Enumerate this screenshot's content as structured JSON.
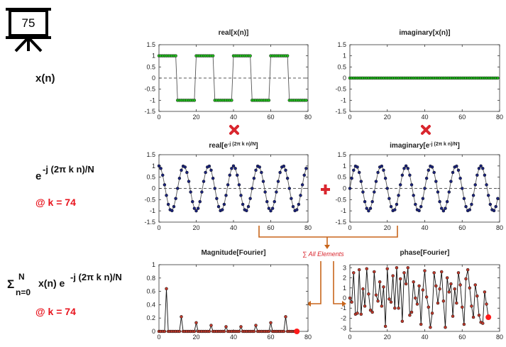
{
  "labels": {
    "icon": "75",
    "signal": "x(n)",
    "exp_base": "e",
    "exp_sup": "-j (2π k n)/N",
    "k_note": "@ k = 74",
    "sum_symbol": "Σ",
    "sum_upper": "N",
    "sum_lower": "n=0",
    "sum_body": "x(n) e",
    "sum_sup": "-j (2π k n)/N",
    "sum_k_note": "@ k = 74",
    "all_elements": "∑ All Elements"
  },
  "chart_data": [
    {
      "type": "line",
      "title": "real[x(n)]",
      "xlim": [
        0,
        80
      ],
      "xticks": [
        0,
        20,
        40,
        60,
        80
      ],
      "ylim": [
        -1.5,
        1.5
      ],
      "yticks": [
        -1.5,
        -1,
        -0.5,
        0,
        0.5,
        1,
        1.5
      ],
      "zero_line": true,
      "x": [
        0,
        1,
        2,
        3,
        4,
        5,
        6,
        7,
        8,
        9,
        10,
        11,
        12,
        13,
        14,
        15,
        16,
        17,
        18,
        19,
        20,
        21,
        22,
        23,
        24,
        25,
        26,
        27,
        28,
        29,
        30,
        31,
        32,
        33,
        34,
        35,
        36,
        37,
        38,
        39,
        40,
        41,
        42,
        43,
        44,
        45,
        46,
        47,
        48,
        49,
        50,
        51,
        52,
        53,
        54,
        55,
        56,
        57,
        58,
        59,
        60,
        61,
        62,
        63,
        64,
        65,
        66,
        67,
        68,
        69,
        70,
        71,
        72,
        73,
        74,
        75,
        76,
        77,
        78,
        79
      ],
      "series": [
        {
          "color": "#555555",
          "marker_color": "#22c01e",
          "values": [
            1,
            1,
            1,
            1,
            1,
            1,
            1,
            1,
            1,
            1,
            -1,
            -1,
            -1,
            -1,
            -1,
            -1,
            -1,
            -1,
            -1,
            -1,
            1,
            1,
            1,
            1,
            1,
            1,
            1,
            1,
            1,
            1,
            -1,
            -1,
            -1,
            -1,
            -1,
            -1,
            -1,
            -1,
            -1,
            -1,
            1,
            1,
            1,
            1,
            1,
            1,
            1,
            1,
            1,
            1,
            -1,
            -1,
            -1,
            -1,
            -1,
            -1,
            -1,
            -1,
            -1,
            -1,
            1,
            1,
            1,
            1,
            1,
            1,
            1,
            1,
            1,
            1,
            -1,
            -1,
            -1,
            -1,
            -1,
            -1,
            -1,
            -1,
            -1,
            -1
          ]
        }
      ]
    },
    {
      "type": "line",
      "title": "imaginary[x(n)]",
      "xlim": [
        0,
        80
      ],
      "xticks": [
        0,
        20,
        40,
        60,
        80
      ],
      "ylim": [
        -1.5,
        1.5
      ],
      "yticks": [
        -1.5,
        -1,
        -0.5,
        0,
        0.5,
        1,
        1.5
      ],
      "zero_line": true,
      "x": [
        0,
        1,
        2,
        3,
        4,
        5,
        6,
        7,
        8,
        9,
        10,
        11,
        12,
        13,
        14,
        15,
        16,
        17,
        18,
        19,
        20,
        21,
        22,
        23,
        24,
        25,
        26,
        27,
        28,
        29,
        30,
        31,
        32,
        33,
        34,
        35,
        36,
        37,
        38,
        39,
        40,
        41,
        42,
        43,
        44,
        45,
        46,
        47,
        48,
        49,
        50,
        51,
        52,
        53,
        54,
        55,
        56,
        57,
        58,
        59,
        60,
        61,
        62,
        63,
        64,
        65,
        66,
        67,
        68,
        69,
        70,
        71,
        72,
        73,
        74,
        75,
        76,
        77,
        78,
        79
      ],
      "series": [
        {
          "color": "#555555",
          "marker_color": "#22c01e",
          "values": [
            0,
            0,
            0,
            0,
            0,
            0,
            0,
            0,
            0,
            0,
            0,
            0,
            0,
            0,
            0,
            0,
            0,
            0,
            0,
            0,
            0,
            0,
            0,
            0,
            0,
            0,
            0,
            0,
            0,
            0,
            0,
            0,
            0,
            0,
            0,
            0,
            0,
            0,
            0,
            0,
            0,
            0,
            0,
            0,
            0,
            0,
            0,
            0,
            0,
            0,
            0,
            0,
            0,
            0,
            0,
            0,
            0,
            0,
            0,
            0,
            0,
            0,
            0,
            0,
            0,
            0,
            0,
            0,
            0,
            0,
            0,
            0,
            0,
            0,
            0,
            0,
            0,
            0,
            0,
            0
          ]
        }
      ]
    },
    {
      "type": "line",
      "title": "real[e",
      "title_sup": "-j (2π k n)/N",
      "title_end": "]",
      "xlim": [
        0,
        80
      ],
      "xticks": [
        0,
        20,
        40,
        60,
        80
      ],
      "ylim": [
        -1.5,
        1.5
      ],
      "yticks": [
        -1.5,
        -1,
        -0.5,
        0,
        0.5,
        1,
        1.5
      ],
      "zero_line": true,
      "x": [
        0,
        1,
        2,
        3,
        4,
        5,
        6,
        7,
        8,
        9,
        10,
        11,
        12,
        13,
        14,
        15,
        16,
        17,
        18,
        19,
        20,
        21,
        22,
        23,
        24,
        25,
        26,
        27,
        28,
        29,
        30,
        31,
        32,
        33,
        34,
        35,
        36,
        37,
        38,
        39,
        40,
        41,
        42,
        43,
        44,
        45,
        46,
        47,
        48,
        49,
        50,
        51,
        52,
        53,
        54,
        55,
        56,
        57,
        58,
        59,
        60,
        61,
        62,
        63,
        64,
        65,
        66,
        67,
        68,
        69,
        70,
        71,
        72,
        73,
        74,
        75,
        76,
        77,
        78,
        79
      ],
      "series": [
        {
          "color": "#555555",
          "marker_color": "#1a237e",
          "values": [
            1,
            0.89,
            0.59,
            0.16,
            -0.31,
            -0.71,
            -0.95,
            -0.99,
            -0.81,
            -0.45,
            0,
            0.45,
            0.81,
            0.99,
            0.95,
            0.71,
            0.31,
            -0.16,
            -0.59,
            -0.89,
            -1,
            -0.89,
            -0.59,
            -0.16,
            0.31,
            0.71,
            0.95,
            0.99,
            0.81,
            0.45,
            0,
            -0.45,
            -0.81,
            -0.99,
            -0.95,
            -0.71,
            -0.31,
            0.16,
            0.59,
            0.89,
            1,
            0.89,
            0.59,
            0.16,
            -0.31,
            -0.71,
            -0.95,
            -0.99,
            -0.81,
            -0.45,
            0,
            0.45,
            0.81,
            0.99,
            0.95,
            0.71,
            0.31,
            -0.16,
            -0.59,
            -0.89,
            -1,
            -0.89,
            -0.59,
            -0.16,
            0.31,
            0.71,
            0.95,
            0.99,
            0.81,
            0.45,
            0,
            -0.45,
            -0.81,
            -0.99,
            -0.95,
            -0.71,
            -0.31,
            0.16,
            0.59,
            0.89
          ]
        }
      ]
    },
    {
      "type": "line",
      "title": "imaginary[e",
      "title_sup": "-j (2π k n)/N",
      "title_end": "]",
      "xlim": [
        0,
        80
      ],
      "xticks": [
        0,
        20,
        40,
        60,
        80
      ],
      "ylim": [
        -1.5,
        1.5
      ],
      "yticks": [
        -1.5,
        -1,
        -0.5,
        0,
        0.5,
        1,
        1.5
      ],
      "zero_line": true,
      "x": [
        0,
        1,
        2,
        3,
        4,
        5,
        6,
        7,
        8,
        9,
        10,
        11,
        12,
        13,
        14,
        15,
        16,
        17,
        18,
        19,
        20,
        21,
        22,
        23,
        24,
        25,
        26,
        27,
        28,
        29,
        30,
        31,
        32,
        33,
        34,
        35,
        36,
        37,
        38,
        39,
        40,
        41,
        42,
        43,
        44,
        45,
        46,
        47,
        48,
        49,
        50,
        51,
        52,
        53,
        54,
        55,
        56,
        57,
        58,
        59,
        60,
        61,
        62,
        63,
        64,
        65,
        66,
        67,
        68,
        69,
        70,
        71,
        72,
        73,
        74,
        75,
        76,
        77,
        78,
        79
      ],
      "series": [
        {
          "color": "#555555",
          "marker_color": "#1a237e",
          "values": [
            0,
            0.45,
            0.81,
            0.99,
            0.95,
            0.71,
            0.31,
            -0.16,
            -0.59,
            -0.89,
            -1,
            -0.89,
            -0.59,
            -0.16,
            0.31,
            0.71,
            0.95,
            0.99,
            0.81,
            0.45,
            0,
            -0.45,
            -0.81,
            -0.99,
            -0.95,
            -0.71,
            -0.31,
            0.16,
            0.59,
            0.89,
            1,
            0.89,
            0.59,
            0.16,
            -0.31,
            -0.71,
            -0.95,
            -0.99,
            -0.81,
            -0.45,
            0,
            0.45,
            0.81,
            0.99,
            0.95,
            0.71,
            0.31,
            -0.16,
            -0.59,
            -0.89,
            -1,
            -0.89,
            -0.59,
            -0.16,
            0.31,
            0.71,
            0.95,
            0.99,
            0.81,
            0.45,
            0,
            -0.45,
            -0.81,
            -0.99,
            -0.95,
            -0.71,
            -0.31,
            0.16,
            0.59,
            0.89,
            1,
            0.89,
            0.59,
            0.16,
            -0.31,
            -0.71,
            -0.95,
            -0.99,
            -0.81,
            -0.45
          ]
        }
      ]
    },
    {
      "type": "line",
      "title": "Magnitude[Fourier]",
      "xlim": [
        0,
        80
      ],
      "xticks": [
        0,
        20,
        40,
        60,
        80
      ],
      "ylim": [
        0,
        1
      ],
      "yticks": [
        0,
        0.2,
        0.4,
        0.6,
        0.8,
        1
      ],
      "highlight_color": "#ff1a1a",
      "x": [
        0,
        1,
        2,
        3,
        4,
        5,
        6,
        7,
        8,
        9,
        10,
        11,
        12,
        13,
        14,
        15,
        16,
        17,
        18,
        19,
        20,
        21,
        22,
        23,
        24,
        25,
        26,
        27,
        28,
        29,
        30,
        31,
        32,
        33,
        34,
        35,
        36,
        37,
        38,
        39,
        40,
        41,
        42,
        43,
        44,
        45,
        46,
        47,
        48,
        49,
        50,
        51,
        52,
        53,
        54,
        55,
        56,
        57,
        58,
        59,
        60,
        61,
        62,
        63,
        64,
        65,
        66,
        67,
        68,
        69,
        70,
        71,
        72,
        73,
        74
      ],
      "series": [
        {
          "color": "#111111",
          "marker_color": "#c0392b",
          "values": [
            0,
            0,
            0,
            0,
            0.64,
            0,
            0,
            0,
            0,
            0,
            0,
            0,
            0.22,
            0,
            0,
            0,
            0,
            0,
            0,
            0,
            0.13,
            0,
            0,
            0,
            0,
            0,
            0,
            0,
            0.09,
            0,
            0,
            0,
            0,
            0,
            0,
            0,
            0.07,
            0,
            0,
            0,
            0,
            0,
            0,
            0,
            0.07,
            0,
            0,
            0,
            0,
            0,
            0,
            0,
            0.09,
            0,
            0,
            0,
            0,
            0,
            0,
            0,
            0.13,
            0,
            0,
            0,
            0,
            0,
            0,
            0,
            0.22,
            0,
            0,
            0,
            0,
            0,
            0
          ]
        }
      ]
    },
    {
      "type": "line",
      "title": "phase[Fourier]",
      "xlim": [
        0,
        80
      ],
      "xticks": [
        0,
        20,
        40,
        60,
        80
      ],
      "ylim": [
        -3.3,
        3.3
      ],
      "yticks": [
        -3,
        -2,
        -1,
        0,
        1,
        2,
        3
      ],
      "highlight_color": "#ff1a1a",
      "x": [
        0,
        1,
        2,
        3,
        4,
        5,
        6,
        7,
        8,
        9,
        10,
        11,
        12,
        13,
        14,
        15,
        16,
        17,
        18,
        19,
        20,
        21,
        22,
        23,
        24,
        25,
        26,
        27,
        28,
        29,
        30,
        31,
        32,
        33,
        34,
        35,
        36,
        37,
        38,
        39,
        40,
        41,
        42,
        43,
        44,
        45,
        46,
        47,
        48,
        49,
        50,
        51,
        52,
        53,
        54,
        55,
        56,
        57,
        58,
        59,
        60,
        61,
        62,
        63,
        64,
        65,
        66,
        67,
        68,
        69,
        70,
        71,
        72,
        73,
        74
      ],
      "series": [
        {
          "color": "#111111",
          "marker_color": "#c0392b",
          "values": [
            0.0,
            -0.4,
            2.5,
            -1.6,
            -1.5,
            2.8,
            -1.6,
            0.9,
            -0.8,
            2.9,
            0.4,
            -1.2,
            -1.4,
            2.6,
            0.3,
            -0.3,
            1.6,
            -0.8,
            1.1,
            -2.8,
            2.9,
            -0.1,
            -0.4,
            2.2,
            -1.0,
            3.0,
            -1.0,
            1.9,
            -2.3,
            2.5,
            1.4,
            3.0,
            -1.7,
            -1.4,
            1.6,
            0.0,
            -0.6,
            1.2,
            -2.6,
            0.8,
            2.7,
            0.1,
            -0.9,
            -2.9,
            -1.5,
            2.5,
            1.2,
            -0.5,
            0.9,
            2.6,
            -0.3,
            -2.9,
            2.0,
            0.6,
            1.4,
            -1.8,
            0.9,
            -0.5,
            2.5,
            1.3,
            -0.9,
            -2.6,
            1.9,
            2.8,
            1.0,
            -0.8,
            -1.9,
            1.3,
            0.2,
            -1.7,
            -2.4,
            -2.5,
            0.6,
            -0.6,
            -1.9
          ]
        }
      ]
    }
  ]
}
